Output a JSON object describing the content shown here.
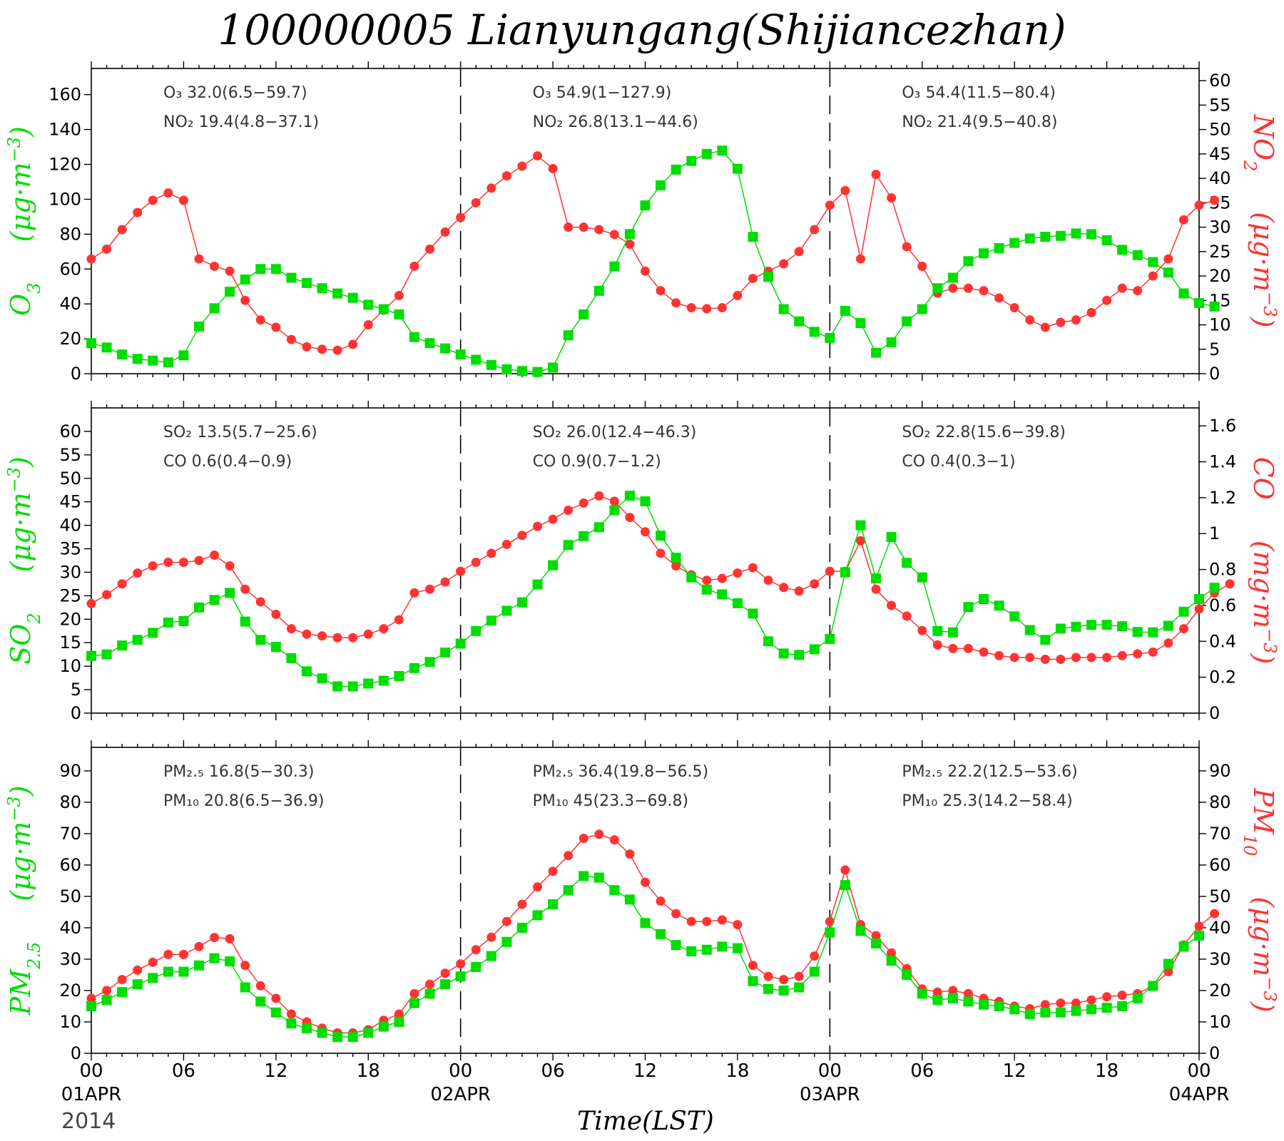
{
  "title": "100000005 Lianyungang(Shijiancezhan)",
  "year": "2014",
  "xlabel": "Time(LST)",
  "colors": {
    "left": "#00dd00",
    "right": "#ff3333"
  },
  "x_ticks": [
    "00",
    "06",
    "12",
    "18",
    "00",
    "06",
    "12",
    "18",
    "00",
    "06",
    "12",
    "18",
    "00"
  ],
  "date_labels": [
    "01APR",
    "02APR",
    "03APR",
    "04APR"
  ],
  "chart_data": [
    {
      "type": "line",
      "x_unit": "hours since 01APR 00 LST",
      "left_axis": {
        "label": "O3 (μg·m⁻³)",
        "lim": [
          0,
          175
        ],
        "ticks": [
          0,
          20,
          40,
          60,
          80,
          100,
          120,
          140,
          160
        ]
      },
      "right_axis": {
        "label": "NO2 (μg·m⁻³)",
        "lim": [
          0,
          62.5
        ],
        "ticks": [
          0,
          5,
          10,
          15,
          20,
          25,
          30,
          35,
          40,
          45,
          50,
          55,
          60
        ]
      },
      "series": [
        {
          "name": "O3",
          "axis": "left",
          "marker": "square",
          "values": [
            17.5,
            15,
            11,
            8.5,
            7.5,
            6.5,
            10.5,
            27,
            37.5,
            47,
            54,
            60,
            60,
            55,
            52,
            49,
            46,
            43.5,
            39.5,
            37,
            34,
            21,
            17.5,
            14.5,
            11,
            8,
            5,
            2.5,
            1.5,
            1,
            3.5,
            22,
            34,
            47.5,
            61.5,
            80,
            96.5,
            108,
            117,
            122,
            126,
            127.9,
            117.5,
            78.5,
            55.5,
            37,
            30,
            24,
            20.5,
            36,
            29,
            12,
            18,
            30,
            37,
            49,
            55,
            64.5,
            69,
            72,
            75,
            77.5,
            78.5,
            79,
            80.4,
            80,
            76.5,
            71,
            68,
            64,
            58,
            46,
            40.5,
            38.5
          ]
        },
        {
          "name": "NO2",
          "axis": "right",
          "marker": "circle",
          "values": [
            23.5,
            25.5,
            29.5,
            33,
            35.5,
            37,
            35.5,
            23.5,
            22,
            21,
            15,
            11,
            9.5,
            7,
            5.5,
            5,
            4.8,
            6,
            10,
            13,
            16,
            22,
            25.5,
            29,
            32,
            35,
            38,
            40.5,
            42.5,
            44.6,
            42,
            30,
            30,
            29.5,
            28.5,
            26.5,
            21,
            17,
            14.5,
            13.5,
            13.3,
            13.5,
            16,
            19.5,
            21,
            22.5,
            25,
            29.5,
            34.5,
            37.5,
            23.5,
            40.8,
            36,
            26,
            22,
            16.5,
            17.5,
            17.5,
            17,
            15.5,
            13.5,
            11,
            9.5,
            10.5,
            11,
            12.5,
            15,
            17.5,
            17,
            20,
            23.5,
            31.5,
            34.5,
            35.5
          ]
        }
      ],
      "annotations": [
        [
          "O₃ 32.0(6.5−59.7)",
          "NO₂ 19.4(4.8−37.1)"
        ],
        [
          "O₃ 54.9(1−127.9)",
          "NO₂ 26.8(13.1−44.6)"
        ],
        [
          "O₃ 54.4(11.5−80.4)",
          "NO₂ 21.4(9.5−40.8)"
        ]
      ]
    },
    {
      "type": "line",
      "x_unit": "hours since 01APR 00 LST",
      "left_axis": {
        "label": "SO2 (μg·m⁻³)",
        "lim": [
          0,
          65
        ],
        "ticks": [
          0,
          5,
          10,
          15,
          20,
          25,
          30,
          35,
          40,
          45,
          50,
          55,
          60
        ]
      },
      "right_axis": {
        "label": "CO (mg·m⁻³)",
        "lim": [
          0,
          1.7
        ],
        "ticks": [
          0,
          0.2,
          0.4,
          0.6,
          0.8,
          1,
          1.2,
          1.4,
          1.6
        ]
      },
      "series": [
        {
          "name": "SO2",
          "axis": "left",
          "marker": "square",
          "values": [
            12.2,
            12.5,
            14.4,
            15.6,
            17.1,
            19.3,
            19.6,
            22.5,
            24.1,
            25.6,
            19.5,
            15.6,
            14.1,
            11.7,
            8.9,
            7.4,
            5.7,
            5.7,
            6.3,
            6.9,
            7.9,
            9.6,
            10.9,
            12.9,
            14.8,
            17.5,
            19.7,
            21.8,
            23.6,
            27.4,
            31.5,
            35.8,
            37.7,
            39.6,
            43.2,
            46.3,
            45.1,
            37.8,
            33.1,
            28.9,
            26.3,
            25.3,
            23.4,
            21.2,
            15.3,
            12.7,
            12.4,
            13.6,
            15.8,
            30,
            40,
            28.7,
            37.5,
            32,
            28.9,
            17.5,
            17.2,
            22.6,
            24.3,
            22.9,
            20.6,
            17.7,
            15.6,
            18,
            18.4,
            18.8,
            18.8,
            18.5,
            17.3,
            17.2,
            18.6,
            21.6,
            24.3,
            26.7
          ]
        },
        {
          "name": "CO",
          "axis": "right",
          "marker": "circle",
          "values": [
            0.61,
            0.66,
            0.72,
            0.78,
            0.82,
            0.84,
            0.84,
            0.85,
            0.88,
            0.82,
            0.69,
            0.62,
            0.55,
            0.47,
            0.44,
            0.43,
            0.42,
            0.42,
            0.44,
            0.47,
            0.52,
            0.67,
            0.69,
            0.73,
            0.79,
            0.84,
            0.89,
            0.94,
            0.99,
            1.04,
            1.08,
            1.13,
            1.17,
            1.21,
            1.18,
            1.09,
            1.01,
            0.89,
            0.82,
            0.77,
            0.74,
            0.75,
            0.78,
            0.81,
            0.74,
            0.7,
            0.68,
            0.72,
            0.79,
            0.79,
            0.96,
            0.69,
            0.6,
            0.54,
            0.46,
            0.38,
            0.36,
            0.36,
            0.34,
            0.32,
            0.31,
            0.31,
            0.3,
            0.3,
            0.31,
            0.31,
            0.31,
            0.32,
            0.33,
            0.34,
            0.39,
            0.47,
            0.58,
            0.67,
            0.72
          ]
        }
      ],
      "annotations": [
        [
          "SO₂ 13.5(5.7−25.6)",
          "CO 0.6(0.4−0.9)"
        ],
        [
          "SO₂ 26.0(12.4−46.3)",
          "CO 0.9(0.7−1.2)"
        ],
        [
          "SO₂ 22.8(15.6−39.8)",
          "CO 0.4(0.3−1)"
        ]
      ]
    },
    {
      "type": "line",
      "x_unit": "hours since 01APR 00 LST",
      "left_axis": {
        "label": "PM2.5 (μg·m⁻³)",
        "lim": [
          0,
          97.5
        ],
        "ticks": [
          0,
          10,
          20,
          30,
          40,
          50,
          60,
          70,
          80,
          90
        ]
      },
      "right_axis": {
        "label": "PM10 (μg·m⁻³)",
        "lim": [
          0,
          97.5
        ],
        "ticks": [
          0,
          10,
          20,
          30,
          40,
          50,
          60,
          70,
          80,
          90
        ]
      },
      "series": [
        {
          "name": "PM2.5",
          "axis": "left",
          "marker": "square",
          "values": [
            15,
            17,
            19.5,
            22,
            24,
            26,
            26,
            28,
            30.3,
            29.3,
            21,
            16.5,
            13,
            9.5,
            8,
            6.5,
            5.2,
            5.2,
            6.5,
            8.5,
            10,
            16,
            19,
            22,
            24.5,
            27.5,
            31,
            35.5,
            40,
            44,
            47.5,
            52,
            56.5,
            56,
            52,
            49,
            41.5,
            38,
            34.5,
            32.5,
            33,
            34,
            33.5,
            23,
            20.5,
            20,
            21,
            26,
            38.5,
            53.6,
            39,
            35,
            29.5,
            25,
            19,
            17,
            17.5,
            16.5,
            15.5,
            15,
            14,
            12.5,
            13,
            13,
            13.5,
            14,
            14.5,
            15,
            17.5,
            21.5,
            28.5,
            34,
            37.5
          ]
        },
        {
          "name": "PM10",
          "axis": "right",
          "marker": "circle",
          "values": [
            17.5,
            20,
            23.5,
            26.5,
            29,
            31.5,
            31.5,
            34,
            36.9,
            36.5,
            28,
            21.5,
            17.5,
            12.5,
            10,
            8,
            6.5,
            6.5,
            7.5,
            10.5,
            12.5,
            19,
            22,
            25.5,
            28.5,
            33,
            37,
            42,
            47.5,
            53,
            58,
            63,
            68.5,
            69.8,
            68,
            63.5,
            54.5,
            48.5,
            44.5,
            42,
            42,
            42.5,
            41,
            28,
            24.5,
            23.5,
            24.5,
            31,
            42,
            58.4,
            41,
            37.5,
            32,
            27,
            20.5,
            19.5,
            20,
            19,
            17.5,
            16.5,
            15,
            14.2,
            15.5,
            16,
            16,
            17,
            18,
            18.5,
            19,
            21.5,
            26,
            34.5,
            40.5,
            44.5
          ]
        }
      ],
      "annotations": [
        [
          "PM₂.₅ 16.8(5−30.3)",
          "PM₁₀ 20.8(6.5−36.9)"
        ],
        [
          "PM₂.₅ 36.4(19.8−56.5)",
          "PM₁₀ 45(23.3−69.8)"
        ],
        [
          "PM₂.₅ 22.2(12.5−53.6)",
          "PM₁₀ 25.3(14.2−58.4)"
        ]
      ]
    }
  ]
}
